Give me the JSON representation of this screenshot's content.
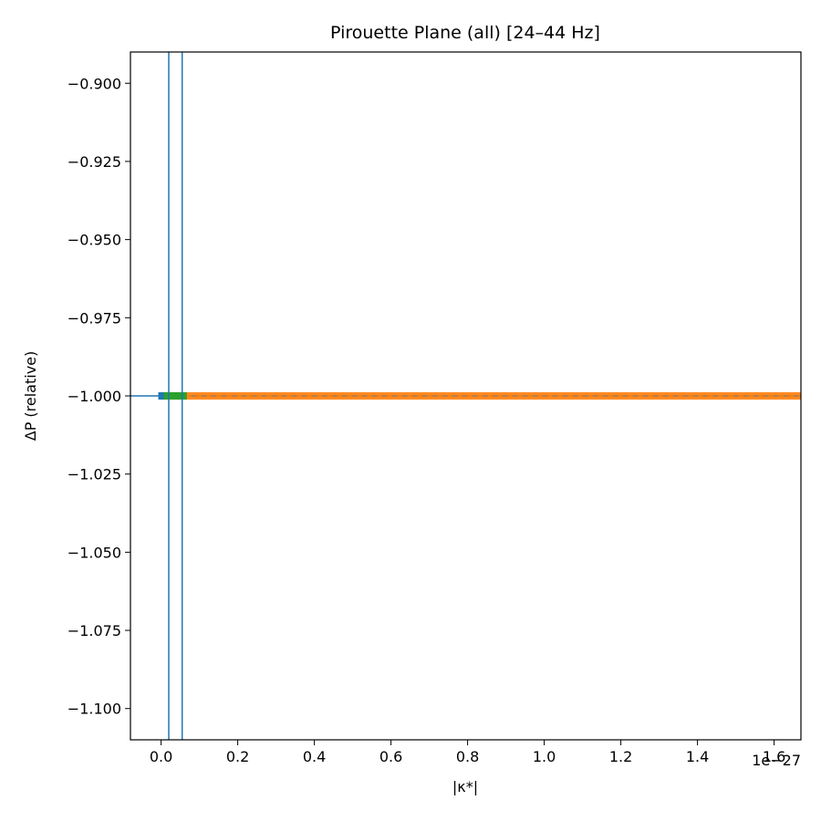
{
  "chart_data": {
    "type": "line",
    "title": "Pirouette Plane (all)  [24–44 Hz]",
    "xlabel": "|κ*|",
    "ylabel": "ΔP (relative)",
    "x_offset_label": "1e−27",
    "xlim": [
      -0.08,
      1.67
    ],
    "ylim": [
      -1.11,
      -0.89
    ],
    "x_scale_exponent": -27,
    "x_ticks": [
      0.0,
      0.2,
      0.4,
      0.6,
      0.8,
      1.0,
      1.2,
      1.4,
      1.6
    ],
    "x_tick_labels": [
      "0.0",
      "0.2",
      "0.4",
      "0.6",
      "0.8",
      "1.0",
      "1.2",
      "1.4",
      "1.6"
    ],
    "y_ticks": [
      -0.9,
      -0.925,
      -0.95,
      -0.975,
      -1.0,
      -1.025,
      -1.05,
      -1.075,
      -1.1
    ],
    "y_tick_labels": [
      "−0.900",
      "−0.925",
      "−0.950",
      "−0.975",
      "−1.000",
      "−1.025",
      "−1.050",
      "−1.075",
      "−1.100"
    ],
    "grid": false,
    "vertical_lines": [
      0.02,
      0.055
    ],
    "series": [
      {
        "color": "#1f77b4",
        "x": [
          -0.08,
          0.0
        ],
        "y": [
          -1.0,
          -1.0
        ]
      },
      {
        "color": "#ff7f0e",
        "x": [
          0.0,
          0.06,
          1.67
        ],
        "y": [
          -1.0,
          -1.0,
          -1.0
        ],
        "band": 0.0012
      },
      {
        "color": "#2ca02c",
        "x": [
          0.0,
          0.01,
          0.02,
          0.03,
          0.04,
          0.05,
          0.06
        ],
        "y": [
          -1.0,
          -1.0,
          -1.0,
          -1.0,
          -1.0,
          -1.0,
          -1.0
        ]
      },
      {
        "color": "#7f7f7f",
        "x": [
          0.0,
          1.67
        ],
        "y": [
          -1.0,
          -1.0
        ]
      }
    ],
    "vline_color": "#1f77b4"
  }
}
